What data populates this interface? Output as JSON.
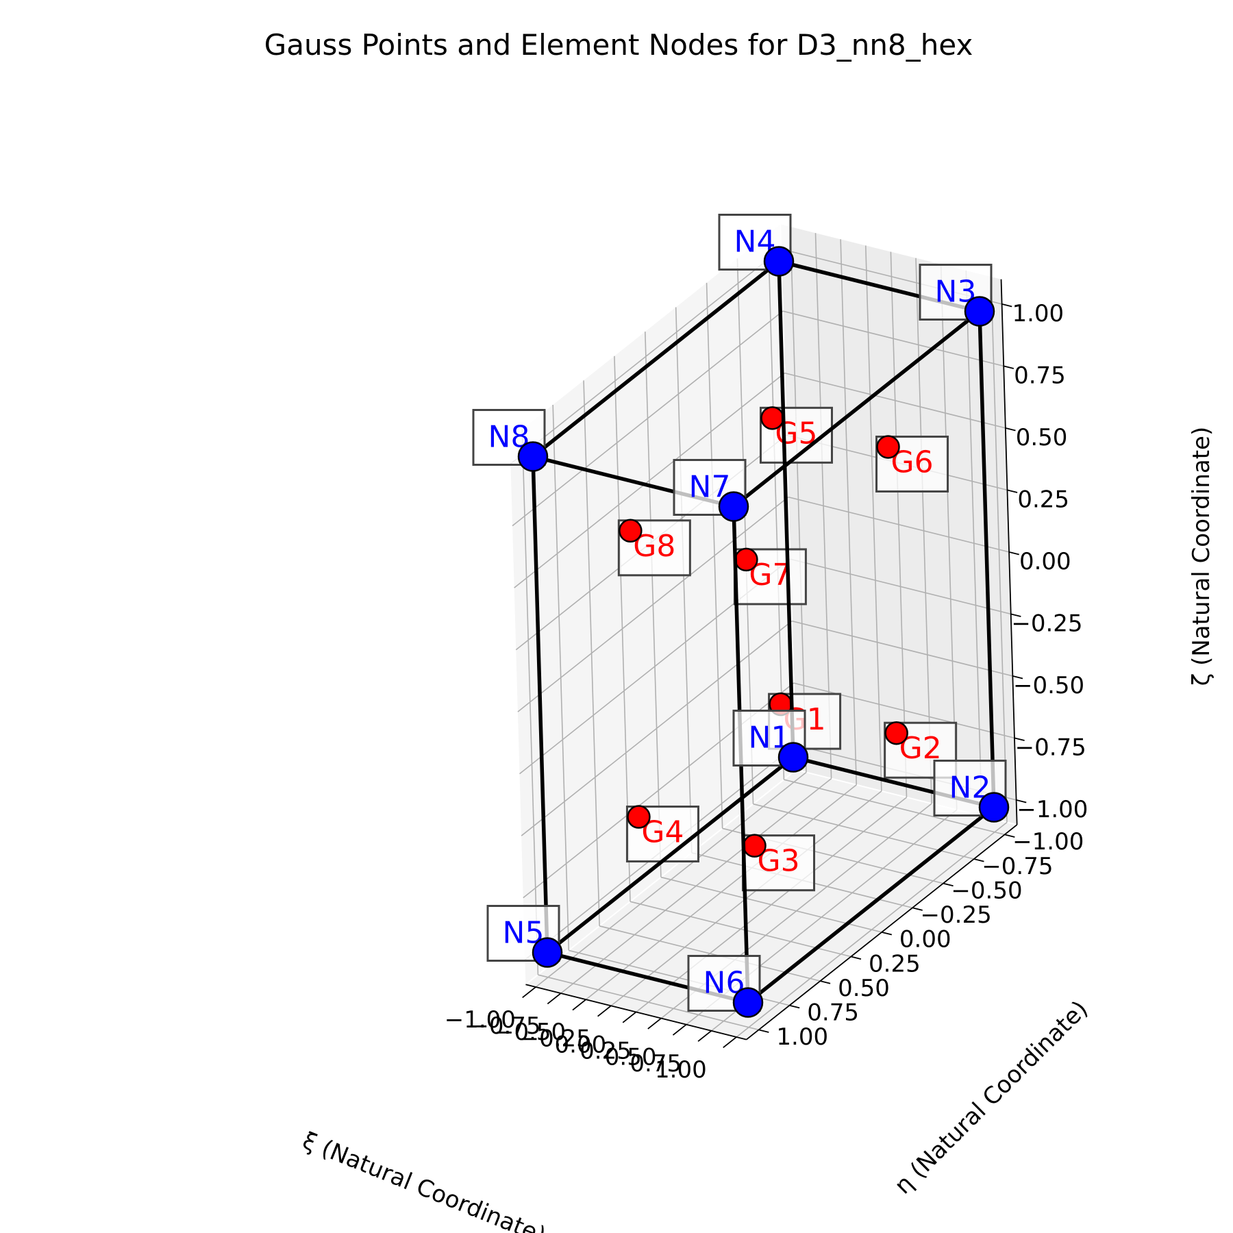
{
  "chart_data": {
    "type": "scatter3d",
    "title": "Gauss Points and Element Nodes for D3_nn8_hex",
    "xlabel": "ξ (Natural Coordinate)",
    "ylabel": "η (Natural Coordinate)",
    "zlabel": "ζ (Natural Coordinate)",
    "xlim": [
      -1.1,
      1.1
    ],
    "ylim": [
      -1.1,
      1.1
    ],
    "zlim": [
      -1.1,
      1.1
    ],
    "ticks": [
      -1.0,
      -0.75,
      -0.5,
      -0.25,
      0.0,
      0.25,
      0.5,
      0.75,
      1.0
    ],
    "tick_labels": [
      "−1.00",
      "−0.75",
      "−0.50",
      "−0.25",
      "0.00",
      "0.25",
      "0.50",
      "0.75",
      "1.00"
    ],
    "grid": true,
    "nodes": [
      {
        "label": "N1",
        "x": -1,
        "y": -1,
        "z": -1
      },
      {
        "label": "N2",
        "x": 1,
        "y": -1,
        "z": -1
      },
      {
        "label": "N3",
        "x": 1,
        "y": -1,
        "z": 1
      },
      {
        "label": "N4",
        "x": -1,
        "y": -1,
        "z": 1
      },
      {
        "label": "N5",
        "x": -1,
        "y": 1,
        "z": -1
      },
      {
        "label": "N6",
        "x": 1,
        "y": 1,
        "z": -1
      },
      {
        "label": "N7",
        "x": 1,
        "y": 1,
        "z": 1
      },
      {
        "label": "N8",
        "x": -1,
        "y": 1,
        "z": 1
      }
    ],
    "edges": [
      [
        0,
        1
      ],
      [
        1,
        2
      ],
      [
        2,
        3
      ],
      [
        3,
        0
      ],
      [
        4,
        5
      ],
      [
        5,
        6
      ],
      [
        6,
        7
      ],
      [
        7,
        4
      ],
      [
        0,
        4
      ],
      [
        1,
        5
      ],
      [
        2,
        6
      ],
      [
        3,
        7
      ]
    ],
    "gauss_points": [
      {
        "label": "G1",
        "x": -0.577,
        "y": -0.577,
        "z": -0.577
      },
      {
        "label": "G2",
        "x": 0.577,
        "y": -0.577,
        "z": -0.577
      },
      {
        "label": "G3",
        "x": 0.577,
        "y": 0.577,
        "z": -0.577
      },
      {
        "label": "G4",
        "x": -0.577,
        "y": 0.577,
        "z": -0.577
      },
      {
        "label": "G5",
        "x": -0.577,
        "y": -0.577,
        "z": 0.577
      },
      {
        "label": "G6",
        "x": 0.577,
        "y": -0.577,
        "z": 0.577
      },
      {
        "label": "G7",
        "x": 0.577,
        "y": 0.577,
        "z": 0.577
      },
      {
        "label": "G8",
        "x": -0.577,
        "y": 0.577,
        "z": 0.577
      }
    ],
    "colors": {
      "node": "#0000ff",
      "node_label": "#0000ff",
      "gauss": "#ff0000",
      "gauss_label": "#ff0000",
      "edge": "#000000",
      "grid": "#b0b0b0"
    }
  }
}
